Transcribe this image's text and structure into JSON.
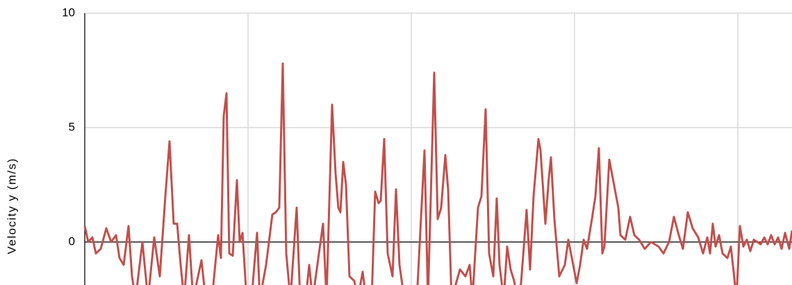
{
  "chart_data": {
    "type": "line",
    "y_label": "Velocity y (m/s)",
    "x": [
      0,
      5,
      11,
      16,
      23,
      31,
      38,
      45,
      50,
      56,
      63,
      68,
      73,
      83,
      91,
      100,
      108,
      116,
      122,
      128,
      133,
      138,
      143,
      150,
      156,
      168,
      174,
      183,
      192,
      196,
      200,
      204,
      208,
      213,
      219,
      223,
      227,
      233,
      240,
      248,
      252,
      261,
      270,
      275,
      280,
      285,
      290,
      296,
      305,
      310,
      318,
      323,
      328,
      343,
      348,
      356,
      361,
      365,
      368,
      372,
      376,
      381,
      388,
      393,
      400,
      405,
      413,
      418,
      423,
      426,
      431,
      436,
      443,
      448,
      453,
      460,
      468,
      478,
      489,
      494,
      503,
      508,
      513,
      519,
      523,
      528,
      540,
      548,
      554,
      558,
      566,
      571,
      577,
      582,
      588,
      593,
      597,
      603,
      608,
      613,
      618,
      623,
      628,
      636,
      641,
      646,
      653,
      656,
      663,
      668,
      671,
      676,
      683,
      691,
      696,
      703,
      708,
      713,
      718,
      723,
      730,
      735,
      740,
      745,
      748,
      755,
      768,
      771,
      778,
      785,
      791,
      798,
      806,
      815,
      826,
      833,
      841,
      848,
      855,
      861,
      868,
      875,
      883,
      890,
      896,
      900,
      904,
      908,
      913,
      918,
      925,
      930,
      934,
      938,
      943,
      948,
      953,
      958,
      963,
      968,
      973,
      978,
      983,
      988,
      993,
      998,
      1003,
      1008,
      1014,
      1018
    ],
    "series": [
      {
        "name": "Velocity y",
        "color": "#c0504d",
        "values": [
          0.7,
          0,
          0.2,
          -0.5,
          -0.3,
          0.6,
          0,
          0.3,
          -0.7,
          -1,
          0.7,
          -1.5,
          -2.5,
          0,
          -2.5,
          0.2,
          -1.5,
          2,
          4.4,
          0.8,
          0.8,
          -1,
          -2.5,
          0.3,
          -2.5,
          -0.8,
          -2.5,
          -2.5,
          0.3,
          -0.7,
          5.5,
          6.5,
          -0.5,
          -0.6,
          2.7,
          0,
          0.4,
          -2.5,
          -2.5,
          0.4,
          -2.5,
          -1,
          1.2,
          1.3,
          1.5,
          7.8,
          -0.5,
          -2.5,
          1.5,
          -2.5,
          -2.5,
          -1,
          -2.5,
          0.8,
          -2.5,
          6,
          3,
          1.5,
          1.3,
          3.5,
          2.5,
          -1.5,
          -1.7,
          -2.5,
          -1.3,
          -2.5,
          -2.5,
          2.2,
          1.7,
          1.8,
          4.5,
          -0.5,
          -1.5,
          2.3,
          -1,
          -2.5,
          -2.5,
          -2.5,
          4,
          -2.5,
          7.4,
          1,
          1.5,
          3.8,
          2.3,
          -2.5,
          -1.2,
          -1.5,
          -1,
          -2.5,
          1.5,
          2,
          5.8,
          -0.5,
          -1.5,
          1.9,
          -1,
          -2.5,
          -0.2,
          -1.2,
          -1.7,
          -2.5,
          -1.8,
          1.4,
          -1.2,
          2,
          4.5,
          4,
          0.8,
          2.8,
          3.7,
          1,
          -1.5,
          -1,
          0.1,
          -1,
          -1.8,
          -1,
          0.1,
          -0.3,
          1,
          2,
          4.1,
          -0.5,
          -0.2,
          3.6,
          1.5,
          0.3,
          0.1,
          1.1,
          0.3,
          0.1,
          -0.3,
          0,
          -0.2,
          -0.5,
          0,
          1.1,
          0.3,
          -0.3,
          1.3,
          0.6,
          0.2,
          -0.5,
          0.2,
          -0.5,
          0.8,
          -0.2,
          0.3,
          -0.5,
          -0.7,
          -0.2,
          -1.3,
          -2.5,
          0.7,
          -0.2,
          0.1,
          -0.4,
          0.1,
          0,
          -0.1,
          0.2,
          -0.1,
          0.3,
          -0.1,
          0.2,
          -0.3,
          0.4,
          -0.3,
          0.5
        ]
      }
    ],
    "xlim": [
      0,
      1018
    ],
    "xticks": [
      0,
      235,
      470,
      705,
      940
    ],
    "ylim": [
      -1.9,
      10
    ],
    "yticks": [
      0,
      5,
      10
    ],
    "grid": true
  }
}
